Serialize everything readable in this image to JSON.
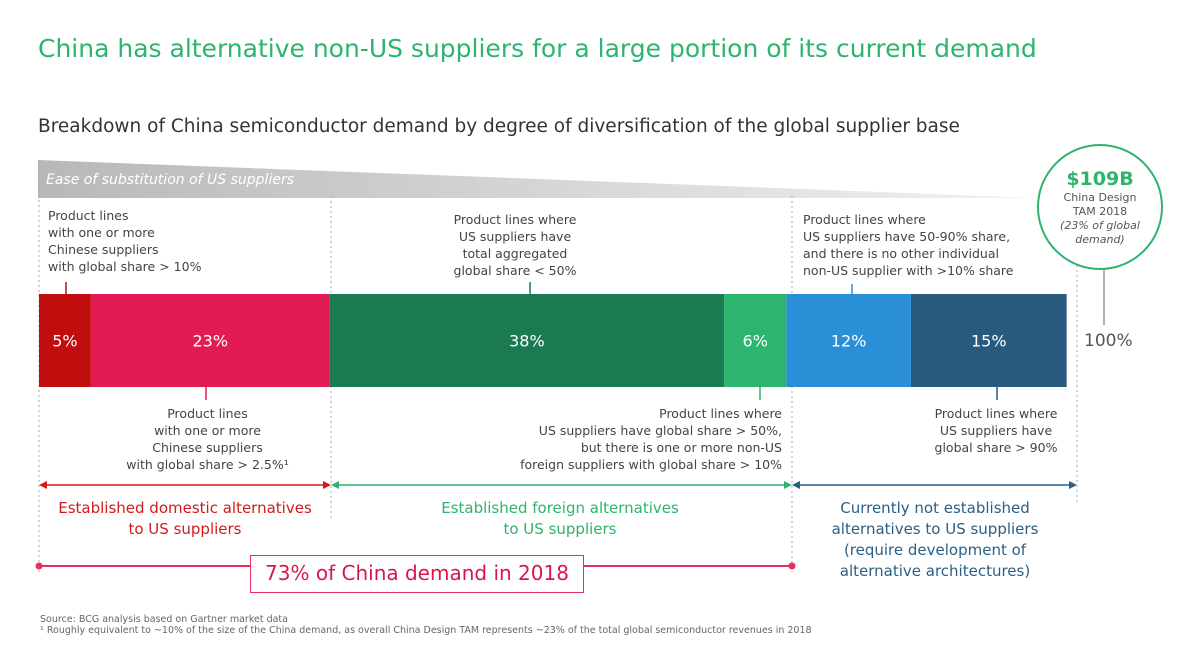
{
  "title": "China has alternative non-US suppliers for a large portion of its current demand",
  "subtitle": "Breakdown of China semiconductor demand by degree of diversification of the global supplier base",
  "ease_label": "Ease of substitution of US suppliers",
  "tam": {
    "value": "$109B",
    "desc": "China Design\nTAM 2018",
    "note": "(23% of global\ndemand)"
  },
  "total_label": "100%",
  "chart_data": {
    "type": "bar",
    "orientation": "horizontal-stacked",
    "title": "Breakdown of China semiconductor demand by degree of diversification of the global supplier base",
    "segments": [
      {
        "label": "5%",
        "value": 5,
        "color": "#c00d0d"
      },
      {
        "label": "23%",
        "value": 23,
        "color": "#e21b54"
      },
      {
        "label": "38%",
        "value": 38,
        "color": "#1b7a52"
      },
      {
        "label": "6%",
        "value": 6,
        "color": "#2db46e"
      },
      {
        "label": "12%",
        "value": 12,
        "color": "#2a8fd6"
      },
      {
        "label": "15%",
        "value": 15,
        "color": "#275a7d"
      }
    ],
    "total": 100
  },
  "top_labels": [
    "Product lines\nwith one or more\nChinese suppliers\nwith global share > 10%",
    "Product lines where\nUS suppliers have\ntotal aggregated\nglobal share < 50%",
    "Product lines where\nUS suppliers have 50-90% share,\nand there is no other individual\nnon-US supplier with >10% share"
  ],
  "bottom_labels": [
    "Product lines\nwith one or more\nChinese suppliers\nwith global share > 2.5%¹",
    "Product lines where\nUS suppliers have global share > 50%,\nbut there is one or more non-US\nforeign suppliers with global share > 10%",
    "Product lines where\nUS suppliers have\nglobal share > 90%"
  ],
  "categories": [
    {
      "label": "Established domestic alternatives\nto US suppliers",
      "color": "#d01c1c"
    },
    {
      "label": "Established foreign alternatives\nto US suppliers",
      "color": "#2db46e"
    },
    {
      "label": "Currently not established\nalternatives to US suppliers\n(require development of\nalternative architectures)",
      "color": "#2a5f86"
    }
  ],
  "demand_label": "73% of China demand in 2018",
  "source": "Source: BCG analysis based on Gartner market data",
  "footnote": "¹ Roughly equivalent to ~10% of the size of the China demand, as overall China Design TAM represents ~23% of the total global semiconductor revenues in 2018"
}
